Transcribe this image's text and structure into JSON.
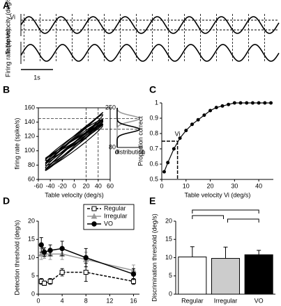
{
  "chart_data": [
    {
      "panel": "A",
      "type": "wave",
      "ylabels": [
        "Table velocity (deg/s)",
        "Firing rate (spk/s)"
      ],
      "annotation": "Vi",
      "scale_label": "1s"
    },
    {
      "panel": "B",
      "type": "loops",
      "xlabel": "Table velocity (deg/s)",
      "ylabel": "firing rate (spike/s)",
      "xlim": [
        -60,
        60
      ],
      "xticks": [
        -60,
        -40,
        -20,
        0,
        20,
        40,
        60
      ],
      "ylim": [
        60,
        160
      ],
      "yticks": [
        60,
        80,
        100,
        120,
        140,
        160
      ],
      "reference_x": [
        20,
        40
      ],
      "reference_y": [
        130,
        145
      ],
      "inset": {
        "xlabel": "distribution",
        "xticks": [
          0,
          1
        ],
        "yticks": [
          80,
          250
        ]
      }
    },
    {
      "panel": "C",
      "type": "line",
      "xlabel": "Table velocity Vi (deg/s)",
      "ylabel": "Proportion correct",
      "xlim": [
        0,
        46
      ],
      "xticks": [
        0,
        10,
        20,
        30,
        40
      ],
      "ylim": [
        0.5,
        1
      ],
      "yticks": [
        0.5,
        0.6,
        0.7,
        0.8,
        0.9,
        1
      ],
      "x": [
        1,
        2.5,
        5,
        7.5,
        10,
        12.5,
        15,
        17.5,
        20,
        22.5,
        25,
        27.5,
        30,
        32.5,
        35,
        37.5,
        40,
        42.5,
        45
      ],
      "series": [
        {
          "color": "#000",
          "values": [
            0.55,
            0.61,
            0.7,
            0.77,
            0.82,
            0.86,
            0.89,
            0.92,
            0.95,
            0.97,
            0.98,
            0.99,
            1,
            1,
            1,
            1,
            1,
            1,
            1
          ]
        }
      ],
      "annotation": {
        "text": "Vi",
        "x": 6.5,
        "y": 0.75
      }
    },
    {
      "panel": "D",
      "type": "errline",
      "xlabel": "Frequency(Hz)",
      "ylabel": "Detection threshold (deg/s)",
      "xlim": [
        0,
        17
      ],
      "xticks": [
        0,
        4,
        8,
        12,
        16
      ],
      "ylim": [
        0,
        20
      ],
      "yticks": [
        0,
        5,
        10,
        15,
        20
      ],
      "x": [
        0.5,
        1,
        2,
        4,
        8,
        16
      ],
      "series": [
        {
          "name": "Regular",
          "color": "#000",
          "marker": "square",
          "dash": true,
          "values": [
            3.5,
            3,
            3.5,
            6,
            6,
            3.5
          ],
          "errors": [
            0.8,
            0.6,
            0.8,
            1,
            2.5,
            0.8
          ]
        },
        {
          "name": "Irregular",
          "color": "#999",
          "marker": "triangle",
          "dash": false,
          "values": [
            11,
            11,
            11,
            11,
            9.5,
            6.5
          ],
          "errors": [
            1.5,
            1.2,
            1.5,
            1.5,
            2,
            1.5
          ]
        },
        {
          "name": "VO",
          "color": "#000",
          "marker": "circle",
          "dash": false,
          "values": [
            13.5,
            11.5,
            12,
            12.5,
            10,
            5.5
          ],
          "errors": [
            2,
            1.2,
            1.5,
            2,
            2.5,
            1.5
          ]
        }
      ]
    },
    {
      "panel": "E",
      "type": "bar",
      "ylabel": "Discrimination threshold (deg/s)",
      "ylim": [
        0,
        20
      ],
      "yticks": [
        0,
        5,
        10,
        15,
        20
      ],
      "categories": [
        "Regular",
        "Irregular",
        "VO"
      ],
      "values": [
        10.2,
        9.8,
        10.8
      ],
      "errors": [
        2.8,
        3.1,
        1.2
      ],
      "colors": [
        "#ffffff",
        "#cccccc",
        "#000000"
      ],
      "brackets": [
        [
          0,
          2
        ],
        [
          0,
          1
        ],
        [
          1,
          2
        ]
      ]
    }
  ]
}
